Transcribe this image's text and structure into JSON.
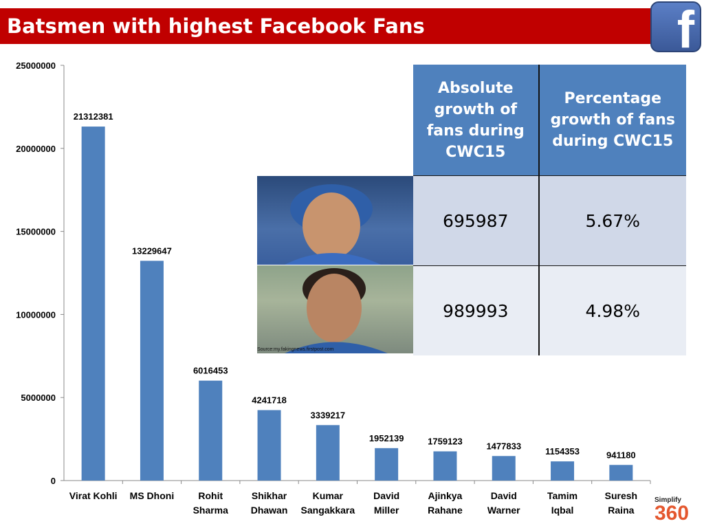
{
  "title": "Batsmen with highest Facebook Fans",
  "brand_icon": "facebook-logo-icon",
  "colors": {
    "title_bar": "#c00000",
    "bars": "#4f81bd",
    "table_header": "#4f81bd"
  },
  "chart_data": {
    "type": "bar",
    "categories": [
      [
        "Virat Kohli"
      ],
      [
        "MS Dhoni"
      ],
      [
        "Rohit",
        "Sharma"
      ],
      [
        "Shikhar",
        "Dhawan"
      ],
      [
        "Kumar",
        "Sangakkara"
      ],
      [
        "David",
        "Miller"
      ],
      [
        "Ajinkya",
        "Rahane"
      ],
      [
        "David",
        "Warner"
      ],
      [
        "Tamim",
        "Iqbal"
      ],
      [
        "Suresh",
        "Raina"
      ]
    ],
    "values": [
      21312381,
      13229647,
      6016453,
      4241718,
      3339217,
      1952139,
      1759123,
      1477833,
      1154353,
      941180
    ],
    "ylim": [
      0,
      25000000
    ],
    "yticks": [
      "0",
      "5000000",
      "10000000",
      "15000000",
      "20000000",
      "25000000"
    ],
    "data_labels": true,
    "grid": false
  },
  "table": {
    "headers": [
      "Absolute growth of fans during CWC15",
      "Percentage growth of fans during CWC15"
    ],
    "rows": [
      {
        "player_image": "ms-dhoni-photo",
        "absolute": "695987",
        "percentage": "5.67%"
      },
      {
        "player_image": "virat-kohli-photo",
        "absolute": "989993",
        "percentage": "4.98%"
      }
    ]
  },
  "photo_credit": "Source:my.fakingnews.firstpost.com",
  "footer_logo": {
    "top": "Simplify",
    "bottom": "360"
  }
}
